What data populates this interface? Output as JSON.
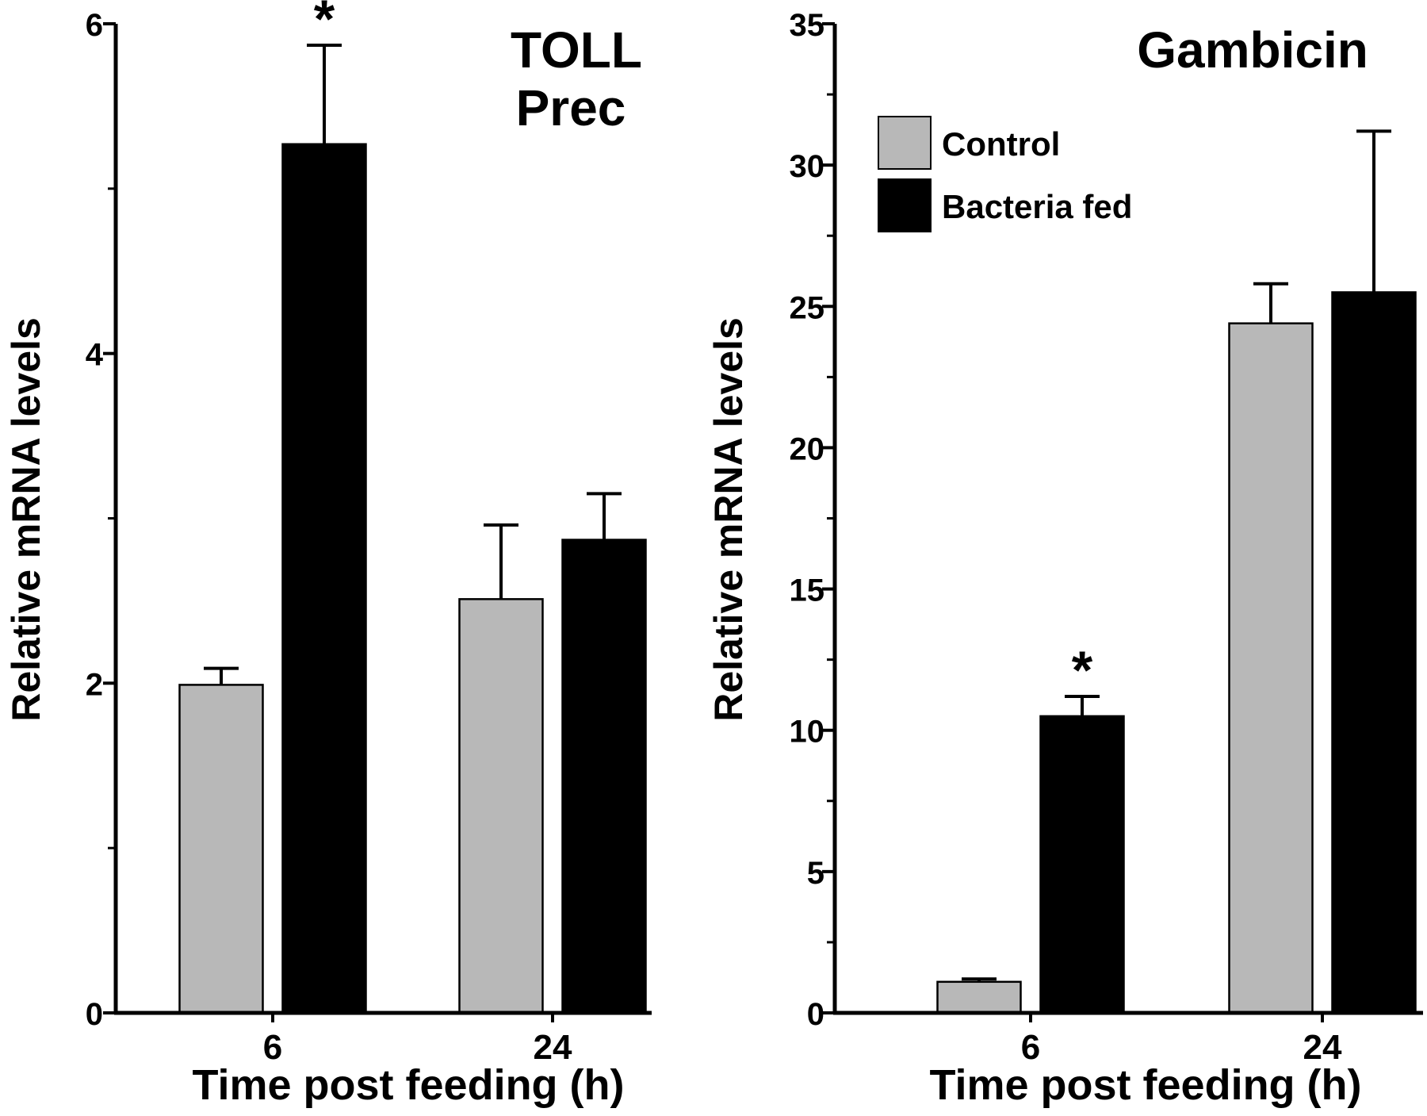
{
  "chart_data": [
    {
      "type": "bar",
      "title_lines": [
        "TOLL",
        "Prec"
      ],
      "xlabel": "Time post feeding (h)",
      "ylabel": "Relative mRNA levels",
      "categories": [
        "6",
        "24"
      ],
      "ylim": [
        0,
        6
      ],
      "y_major_ticks": [
        0,
        2,
        4,
        6
      ],
      "y_minor_ticks": [
        1,
        3,
        5
      ],
      "y_tick_labels": [
        "0",
        "2",
        "4",
        "6"
      ],
      "series": [
        {
          "name": "Control",
          "color": "#b8b8b8",
          "values": [
            1.99,
            2.51
          ],
          "errors": [
            0.1,
            0.45
          ]
        },
        {
          "name": "Bacteria fed",
          "color": "#000000",
          "values": [
            5.27,
            2.87
          ],
          "errors": [
            0.6,
            0.28
          ]
        }
      ],
      "significance": [
        {
          "series": 1,
          "category": 0,
          "label": "*"
        }
      ]
    },
    {
      "type": "bar",
      "title_lines": [
        "Gambicin"
      ],
      "xlabel": "Time post feeding (h)",
      "ylabel": "Relative mRNA levels",
      "categories": [
        "6",
        "24"
      ],
      "ylim": [
        0,
        35
      ],
      "y_major_ticks": [
        0,
        5,
        10,
        15,
        20,
        25,
        30,
        35
      ],
      "y_minor_ticks": [
        2.5,
        7.5,
        12.5,
        17.5,
        22.5,
        27.5,
        32.5
      ],
      "y_tick_labels": [
        "0",
        "5",
        "10",
        "15",
        "20",
        "25",
        "30",
        "35"
      ],
      "series": [
        {
          "name": "Control",
          "color": "#b8b8b8",
          "values": [
            1.1,
            24.4
          ],
          "errors": [
            0.1,
            1.4
          ]
        },
        {
          "name": "Bacteria fed",
          "color": "#000000",
          "values": [
            10.5,
            25.5
          ],
          "errors": [
            0.7,
            5.7
          ]
        }
      ],
      "significance": [
        {
          "series": 1,
          "category": 0,
          "label": "*"
        }
      ],
      "legend": {
        "position": "top-left",
        "entries": [
          "Control",
          "Bacteria fed"
        ]
      }
    }
  ]
}
